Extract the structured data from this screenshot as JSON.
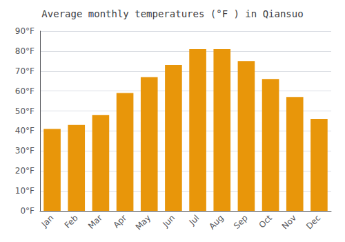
{
  "chart_data": {
    "type": "bar",
    "title": "Average monthly temperatures (°F ) in Qiansuo",
    "categories": [
      "Jan",
      "Feb",
      "Mar",
      "Apr",
      "May",
      "Jun",
      "Jul",
      "Aug",
      "Sep",
      "Oct",
      "Nov",
      "Dec"
    ],
    "values": [
      41,
      43,
      48,
      59,
      67,
      73,
      81,
      81,
      75,
      66,
      57,
      46
    ],
    "color": "#E8960A",
    "ylim": [
      0,
      90
    ],
    "yticks": [
      {
        "value": 0,
        "label": "0°F"
      },
      {
        "value": 10,
        "label": "10°F"
      },
      {
        "value": 20,
        "label": "20°F"
      },
      {
        "value": 30,
        "label": "30°F"
      },
      {
        "value": 40,
        "label": "40°F"
      },
      {
        "value": 50,
        "label": "50°F"
      },
      {
        "value": 60,
        "label": "60°F"
      },
      {
        "value": 70,
        "label": "70°F"
      },
      {
        "value": 80,
        "label": "80°F"
      },
      {
        "value": 90,
        "label": "90°F"
      }
    ],
    "grid": true
  }
}
